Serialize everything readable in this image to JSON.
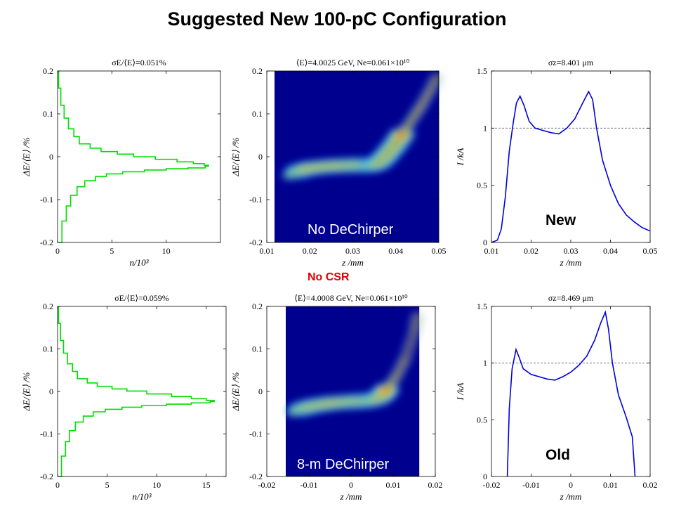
{
  "slide": {
    "title": "Suggested New 100-pC Configuration",
    "no_csr_label": "No CSR",
    "new_label": "New",
    "old_label": "Old",
    "top_density_label": "No DeChirper",
    "bottom_density_label": "8-m DeChirper"
  },
  "colors": {
    "histogram_line": "#00dd00",
    "current_line": "#0000dd",
    "density_background": "#00008f",
    "reference_line": "#666666",
    "no_csr_text": "#e00000"
  },
  "chart_data": [
    {
      "type": "line",
      "id": "top-energy-histogram",
      "title": "σE/⟨E⟩=0.051%",
      "xlabel": "n/10³",
      "ylabel": "ΔE/⟨E⟩ /%",
      "xlim": [
        0,
        15
      ],
      "ylim": [
        -0.2,
        0.2
      ],
      "xticks": [
        "0",
        "5",
        "10"
      ],
      "yticks": [
        "-0.2",
        "-0.1",
        "0",
        "0.1",
        "0.2"
      ],
      "series": [
        {
          "values": [
            [
              0.1,
              0.2
            ],
            [
              0.3,
              0.16
            ],
            [
              0.6,
              0.12
            ],
            [
              1.0,
              0.09
            ],
            [
              1.5,
              0.065
            ],
            [
              2.0,
              0.047
            ],
            [
              3.0,
              0.03
            ],
            [
              4.0,
              0.02
            ],
            [
              5.5,
              0.012
            ],
            [
              7.0,
              0.006
            ],
            [
              9.0,
              0.0
            ],
            [
              11.0,
              -0.006
            ],
            [
              12.5,
              -0.012
            ],
            [
              13.5,
              -0.016
            ],
            [
              13.9,
              -0.02
            ],
            [
              13.6,
              -0.022
            ],
            [
              12.0,
              -0.026
            ],
            [
              10.0,
              -0.028
            ],
            [
              8.0,
              -0.031
            ],
            [
              6.0,
              -0.035
            ],
            [
              4.5,
              -0.04
            ],
            [
              3.5,
              -0.046
            ],
            [
              2.5,
              -0.056
            ],
            [
              1.8,
              -0.07
            ],
            [
              1.2,
              -0.09
            ],
            [
              0.8,
              -0.115
            ],
            [
              0.4,
              -0.15
            ],
            [
              0.1,
              -0.2
            ]
          ]
        }
      ]
    },
    {
      "type": "heatmap",
      "id": "top-phase-space",
      "title": "⟨E⟩=4.0025 GeV, Ne=0.061×10¹⁰",
      "xlabel": "z /mm",
      "ylabel": "ΔE/⟨E⟩ /%",
      "xlim": [
        0.01,
        0.05
      ],
      "ylim": [
        -0.2,
        0.2
      ],
      "xticks": [
        "0.01",
        "0.02",
        "0.03",
        "0.04",
        "0.05"
      ],
      "yticks": [
        "-0.2",
        "-0.1",
        "0",
        "0.1",
        "0.2"
      ],
      "series": [
        {
          "values": [
            [
              0.015,
              -0.045
            ],
            [
              0.017,
              -0.035
            ],
            [
              0.02,
              -0.027
            ],
            [
              0.025,
              -0.022
            ],
            [
              0.03,
              -0.02
            ],
            [
              0.034,
              -0.02
            ],
            [
              0.036,
              -0.015
            ],
            [
              0.038,
              0.005
            ],
            [
              0.04,
              0.03
            ],
            [
              0.042,
              0.06
            ],
            [
              0.044,
              0.09
            ],
            [
              0.046,
              0.12
            ],
            [
              0.048,
              0.155
            ],
            [
              0.05,
              0.195
            ]
          ]
        }
      ]
    },
    {
      "type": "line",
      "id": "top-current-profile",
      "title": "σz=8.401 μm",
      "xlabel": "z /mm",
      "ylabel": "I /kA",
      "xlim": [
        0.01,
        0.05
      ],
      "ylim": [
        0,
        1.5
      ],
      "xticks": [
        "0.01",
        "0.02",
        "0.03",
        "0.04",
        "0.05"
      ],
      "yticks": [
        "0",
        "0.5",
        "1",
        "1.5"
      ],
      "reference_y": 1,
      "series": [
        {
          "values": [
            [
              0.01,
              0.0
            ],
            [
              0.0115,
              0.02
            ],
            [
              0.0125,
              0.12
            ],
            [
              0.0135,
              0.4
            ],
            [
              0.0145,
              0.8
            ],
            [
              0.0155,
              1.05
            ],
            [
              0.0163,
              1.22
            ],
            [
              0.0172,
              1.28
            ],
            [
              0.0182,
              1.2
            ],
            [
              0.0195,
              1.06
            ],
            [
              0.021,
              1.0
            ],
            [
              0.023,
              0.98
            ],
            [
              0.025,
              0.96
            ],
            [
              0.027,
              0.95
            ],
            [
              0.029,
              1.0
            ],
            [
              0.031,
              1.08
            ],
            [
              0.033,
              1.22
            ],
            [
              0.0345,
              1.32
            ],
            [
              0.0355,
              1.25
            ],
            [
              0.0365,
              1.0
            ],
            [
              0.038,
              0.72
            ],
            [
              0.04,
              0.5
            ],
            [
              0.042,
              0.34
            ],
            [
              0.044,
              0.24
            ],
            [
              0.046,
              0.18
            ],
            [
              0.048,
              0.13
            ],
            [
              0.05,
              0.1
            ]
          ]
        }
      ]
    },
    {
      "type": "line",
      "id": "bottom-energy-histogram",
      "title": "σE/⟨E⟩=0.059%",
      "xlabel": "n/10³",
      "ylabel": "ΔE/⟨E⟩ /%",
      "xlim": [
        0,
        17
      ],
      "ylim": [
        -0.2,
        0.2
      ],
      "xticks": [
        "0",
        "5",
        "10",
        "15"
      ],
      "yticks": [
        "-0.2",
        "-0.1",
        "0",
        "0.1",
        "0.2"
      ],
      "series": [
        {
          "values": [
            [
              0.1,
              0.2
            ],
            [
              0.3,
              0.16
            ],
            [
              0.6,
              0.12
            ],
            [
              1.0,
              0.09
            ],
            [
              1.5,
              0.065
            ],
            [
              2.0,
              0.047
            ],
            [
              3.0,
              0.03
            ],
            [
              4.0,
              0.02
            ],
            [
              5.5,
              0.012
            ],
            [
              7.0,
              0.006
            ],
            [
              9.0,
              0.001
            ],
            [
              11.5,
              -0.006
            ],
            [
              13.5,
              -0.012
            ],
            [
              15.0,
              -0.017
            ],
            [
              15.8,
              -0.021
            ],
            [
              15.4,
              -0.024
            ],
            [
              13.5,
              -0.027
            ],
            [
              11.0,
              -0.03
            ],
            [
              8.5,
              -0.033
            ],
            [
              6.5,
              -0.037
            ],
            [
              4.8,
              -0.042
            ],
            [
              3.6,
              -0.048
            ],
            [
              2.6,
              -0.058
            ],
            [
              1.8,
              -0.072
            ],
            [
              1.2,
              -0.092
            ],
            [
              0.8,
              -0.118
            ],
            [
              0.4,
              -0.152
            ],
            [
              0.1,
              -0.2
            ]
          ]
        }
      ]
    },
    {
      "type": "heatmap",
      "id": "bottom-phase-space",
      "title": "⟨E⟩=4.0008 GeV, Ne=0.061×10¹⁰",
      "xlabel": "z /mm",
      "ylabel": "ΔE/⟨E⟩ /%",
      "xlim": [
        -0.02,
        0.02
      ],
      "ylim": [
        -0.2,
        0.2
      ],
      "xticks": [
        "-0.02",
        "-0.01",
        "0",
        "0.01",
        "0.02"
      ],
      "yticks": [
        "-0.2",
        "-0.1",
        "0",
        "0.1",
        "0.2"
      ],
      "series": [
        {
          "values": [
            [
              -0.014,
              -0.05
            ],
            [
              -0.012,
              -0.042
            ],
            [
              -0.009,
              -0.034
            ],
            [
              -0.005,
              -0.028
            ],
            [
              0.0,
              -0.024
            ],
            [
              0.004,
              -0.022
            ],
            [
              0.007,
              -0.014
            ],
            [
              0.009,
              0.01
            ],
            [
              0.011,
              0.04
            ],
            [
              0.013,
              0.08
            ],
            [
              0.015,
              0.14
            ],
            [
              0.016,
              0.19
            ]
          ]
        }
      ]
    },
    {
      "type": "line",
      "id": "bottom-current-profile",
      "title": "σz=8.469 μm",
      "xlabel": "z /mm",
      "ylabel": "I /kA",
      "xlim": [
        -0.02,
        0.02
      ],
      "ylim": [
        0,
        1.5
      ],
      "xticks": [
        "-0.02",
        "-0.01",
        "0",
        "0.01",
        "0.02"
      ],
      "yticks": [
        "0",
        "0.5",
        "1",
        "1.5"
      ],
      "reference_y": 1,
      "series": [
        {
          "values": [
            [
              -0.016,
              0.0
            ],
            [
              -0.0155,
              0.6
            ],
            [
              -0.0148,
              0.95
            ],
            [
              -0.0138,
              1.12
            ],
            [
              -0.013,
              1.05
            ],
            [
              -0.012,
              0.95
            ],
            [
              -0.01,
              0.9
            ],
            [
              -0.008,
              0.88
            ],
            [
              -0.006,
              0.86
            ],
            [
              -0.004,
              0.85
            ],
            [
              -0.002,
              0.88
            ],
            [
              0.0,
              0.92
            ],
            [
              0.002,
              0.98
            ],
            [
              0.004,
              1.06
            ],
            [
              0.006,
              1.2
            ],
            [
              0.0075,
              1.35
            ],
            [
              0.0087,
              1.45
            ],
            [
              0.0095,
              1.3
            ],
            [
              0.0105,
              1.0
            ],
            [
              0.012,
              0.72
            ],
            [
              0.014,
              0.52
            ],
            [
              0.0155,
              0.35
            ],
            [
              0.016,
              0.1
            ],
            [
              0.0162,
              0.0
            ]
          ]
        }
      ]
    }
  ]
}
